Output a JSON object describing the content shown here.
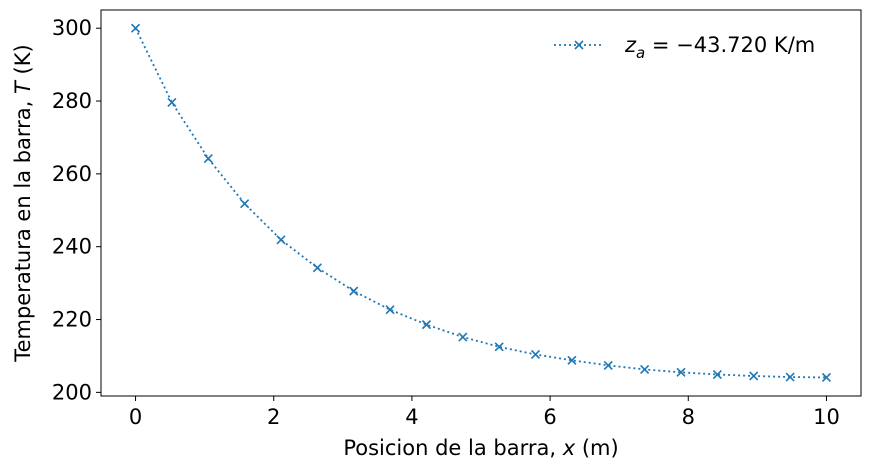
{
  "chart_data": {
    "type": "line",
    "xlabel_parts": [
      "Posicion de la barra, ",
      "x",
      " (m)"
    ],
    "ylabel_parts": [
      "Temperatura en la barra, ",
      "T",
      " (K)"
    ],
    "xlim": [
      -0.5,
      10.5
    ],
    "ylim": [
      199,
      305
    ],
    "xticks": [
      0,
      2,
      4,
      6,
      8,
      10
    ],
    "yticks": [
      200,
      220,
      240,
      260,
      280,
      300
    ],
    "x_tick_labels": [
      "0",
      "2",
      "4",
      "6",
      "8",
      "10"
    ],
    "y_tick_labels": [
      "200",
      "220",
      "240",
      "260",
      "280",
      "300"
    ],
    "grid": false,
    "legend_position": "top-right",
    "series": [
      {
        "legend_parts": [
          "z",
          "a",
          " = −43.720 K/m"
        ],
        "color": "#1f77b4",
        "marker": "x",
        "linestyle": "dotted",
        "x": [
          0,
          0.526,
          1.053,
          1.579,
          2.105,
          2.632,
          3.158,
          3.684,
          4.211,
          4.737,
          5.263,
          5.789,
          6.316,
          6.842,
          7.368,
          7.895,
          8.421,
          8.947,
          9.474,
          10
        ],
        "y": [
          300,
          279.6,
          264.2,
          251.8,
          241.9,
          234.2,
          227.8,
          222.7,
          218.6,
          215.2,
          212.5,
          210.4,
          208.8,
          207.4,
          206.3,
          205.5,
          204.9,
          204.5,
          204.2,
          204.1
        ]
      }
    ]
  }
}
